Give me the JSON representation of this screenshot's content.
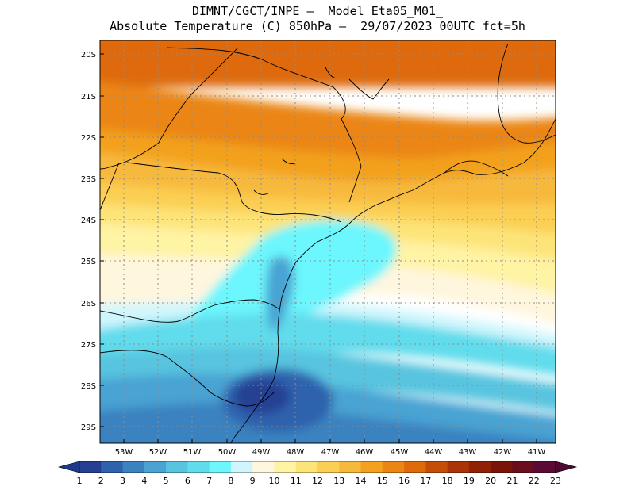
{
  "header": {
    "title_line1": "DIMNT/CGCT/INPE –  Model Eta05_M01_",
    "title_line2": "Absolute Temperature (C) 850hPa –  29/07/2023 00UTC fct=5h"
  },
  "axes": {
    "lat_labels": [
      "20S",
      "21S",
      "22S",
      "23S",
      "24S",
      "25S",
      "26S",
      "27S",
      "28S",
      "29S"
    ],
    "lon_labels": [
      "53W",
      "52W",
      "51W",
      "50W",
      "49W",
      "48W",
      "47W",
      "46W",
      "45W",
      "44W",
      "43W",
      "42W",
      "41W"
    ]
  },
  "legend": {
    "labels": [
      "1",
      "2",
      "3",
      "4",
      "5",
      "6",
      "7",
      "8",
      "9",
      "10",
      "11",
      "12",
      "13",
      "14",
      "15",
      "16",
      "17",
      "18",
      "19",
      "20",
      "21",
      "22",
      "23"
    ],
    "colors": [
      "#253f92",
      "#2e62ad",
      "#3a82c0",
      "#4aa3d3",
      "#58c4df",
      "#61dcec",
      "#6cf6fd",
      "#d0f6fd",
      "#fff6de",
      "#fff3a4",
      "#fde479",
      "#fbcf53",
      "#f7b93c",
      "#f3a11e",
      "#eb8615",
      "#de6a0c",
      "#c54d08",
      "#ab3306",
      "#902107",
      "#7a1409",
      "#6a0e1e",
      "#5b0b33"
    ],
    "left_arrow_color": "#1d3a8c",
    "right_arrow_color": "#4d0a2e"
  },
  "map": {
    "background": "#ffffff",
    "coast_color": "#000000",
    "grid_color": "#8c8c8c"
  }
}
